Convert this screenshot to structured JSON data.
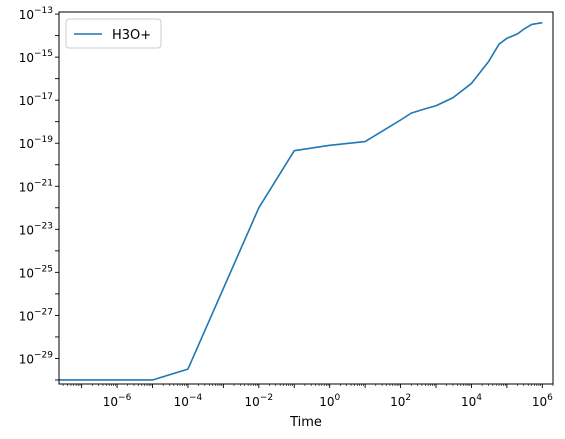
{
  "chart_data": {
    "type": "line",
    "title": "",
    "xlabel": "Time",
    "ylabel": "",
    "x_scale": "log",
    "y_scale": "log",
    "xlim": [
      2.3e-08,
      2000000.0
    ],
    "ylim": [
      6.5e-31,
      1.25e-13
    ],
    "x_ticks": [
      {
        "base": "10",
        "exp": "−6",
        "value": 1e-06
      },
      {
        "base": "10",
        "exp": "−4",
        "value": 0.0001
      },
      {
        "base": "10",
        "exp": "−2",
        "value": 0.01
      },
      {
        "base": "10",
        "exp": "0",
        "value": 1
      },
      {
        "base": "10",
        "exp": "2",
        "value": 100.0
      },
      {
        "base": "10",
        "exp": "4",
        "value": 10000.0
      },
      {
        "base": "10",
        "exp": "6",
        "value": 1000000.0
      }
    ],
    "y_ticks": [
      {
        "base": "10",
        "exp": "−29",
        "value": 1e-29
      },
      {
        "base": "10",
        "exp": "−27",
        "value": 1e-27
      },
      {
        "base": "10",
        "exp": "−25",
        "value": 1e-25
      },
      {
        "base": "10",
        "exp": "−23",
        "value": 1e-23
      },
      {
        "base": "10",
        "exp": "−21",
        "value": 1e-21
      },
      {
        "base": "10",
        "exp": "−19",
        "value": 1e-19
      },
      {
        "base": "10",
        "exp": "−17",
        "value": 1e-17
      },
      {
        "base": "10",
        "exp": "−15",
        "value": 1e-15
      },
      {
        "base": "10",
        "exp": "−13",
        "value": 1e-13
      }
    ],
    "legend": {
      "position": "upper-left",
      "entries": [
        "H3O+"
      ]
    },
    "grid": false,
    "series": [
      {
        "name": "H3O+",
        "color": "#1f77b4",
        "x": [
          2.3e-08,
          1e-05,
          0.0001,
          0.01,
          0.1,
          1,
          10,
          100,
          200,
          500,
          1000,
          3000,
          10000,
          30000,
          60000,
          100000,
          200000,
          300000,
          500000,
          1000000
        ],
        "y": [
          1e-30,
          1e-30,
          3.2e-30,
          1e-22,
          4.5e-20,
          8e-20,
          1.2e-19,
          1.2e-18,
          2.5e-18,
          4e-18,
          5.5e-18,
          1.3e-17,
          6e-17,
          6e-16,
          4e-15,
          7.5e-15,
          1.2e-14,
          2e-14,
          3.3e-14,
          4e-14
        ]
      }
    ]
  }
}
